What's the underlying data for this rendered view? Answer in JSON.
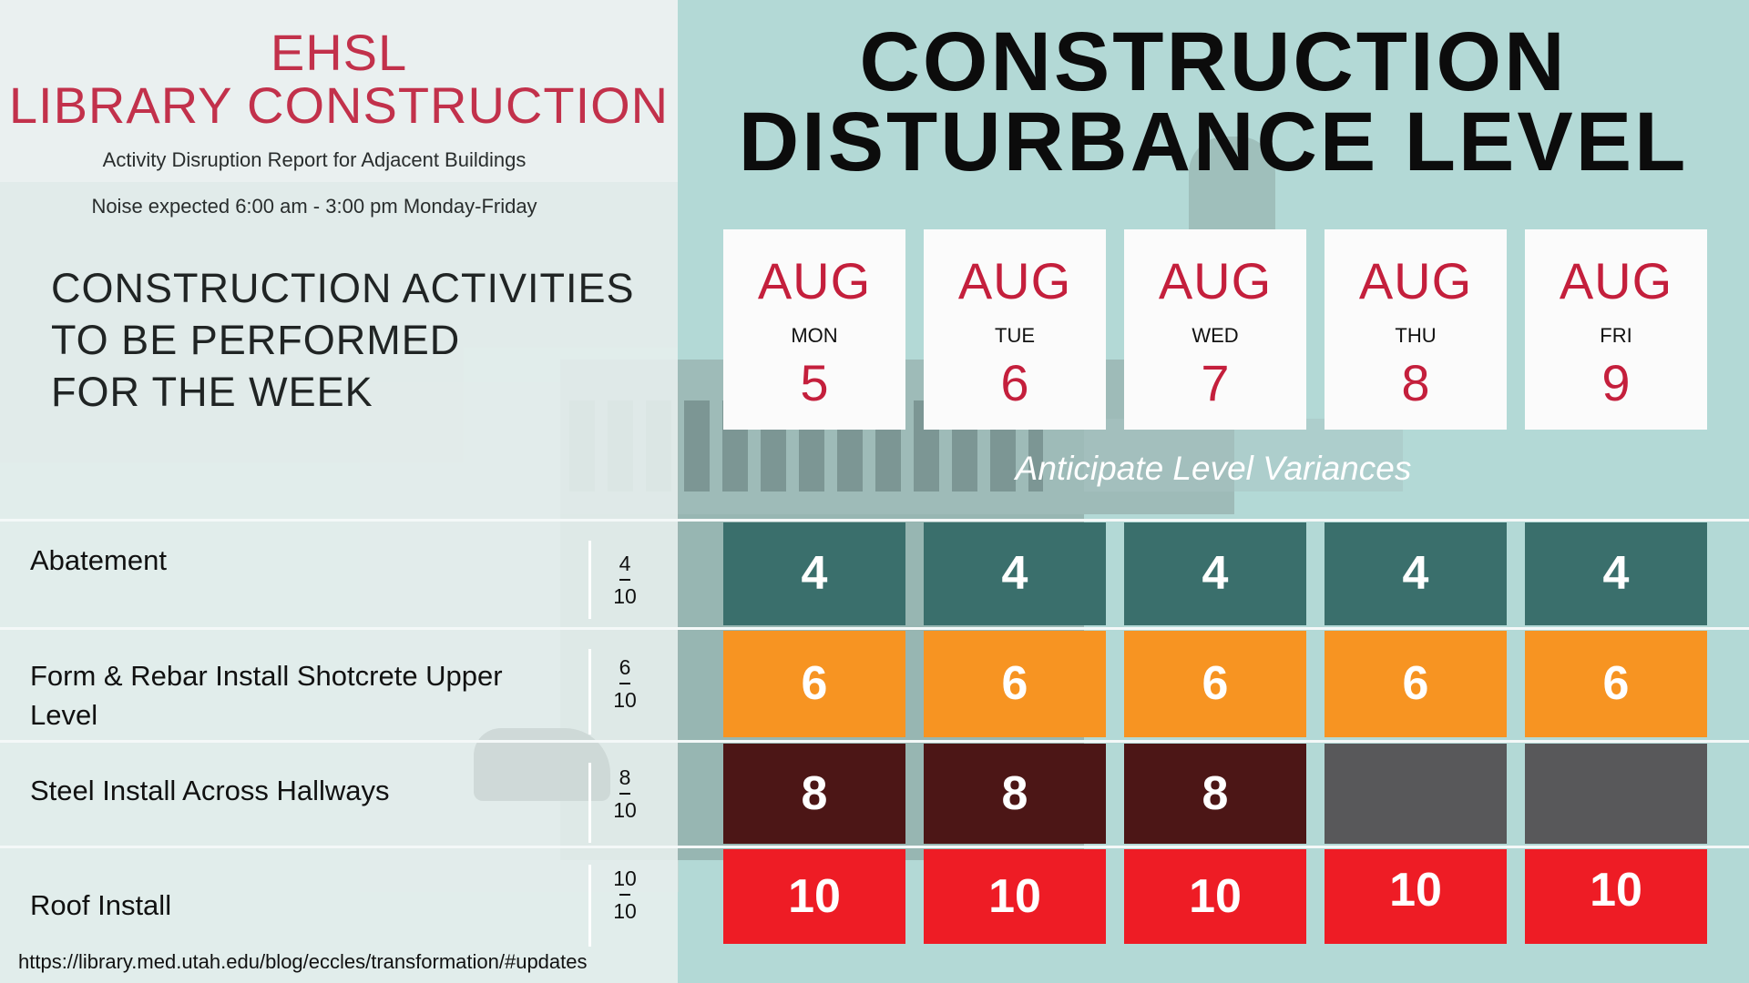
{
  "header": {
    "title_line1": "EHSL",
    "title_line2": "LIBRARY CONSTRUCTION",
    "subtitle": "Activity Disruption Report for Adjacent Buildings",
    "noise_note": "Noise expected 6:00 am - 3:00 pm Monday-Friday"
  },
  "activities_heading": [
    "CONSTRUCTION ACTIVITIES",
    "TO BE PERFORMED",
    "FOR THE WEEK"
  ],
  "main_title": [
    "CONSTRUCTION",
    "DISTURBANCE LEVEL"
  ],
  "variance_note": "Anticipate Level Variances",
  "days": [
    {
      "month": "AUG",
      "weekday": "MON",
      "day": "5"
    },
    {
      "month": "AUG",
      "weekday": "TUE",
      "day": "6"
    },
    {
      "month": "AUG",
      "weekday": "WED",
      "day": "7"
    },
    {
      "month": "AUG",
      "weekday": "THU",
      "day": "8"
    },
    {
      "month": "AUG",
      "weekday": "FRI",
      "day": "9"
    }
  ],
  "activities": [
    {
      "label": "Abatement",
      "level": "4",
      "max": "10",
      "values": [
        "4",
        "4",
        "4",
        "4",
        "4"
      ]
    },
    {
      "label": "Form & Rebar Install Shotcrete Upper Level",
      "level": "6",
      "max": "10",
      "values": [
        "6",
        "6",
        "6",
        "6",
        "6"
      ]
    },
    {
      "label": "Steel Install Across Hallways",
      "level": "8",
      "max": "10",
      "values": [
        "8",
        "8",
        "8",
        "",
        ""
      ]
    },
    {
      "label": "Roof Install",
      "level": "10",
      "max": "10",
      "values": [
        "10",
        "10",
        "10",
        "10",
        "10"
      ]
    }
  ],
  "colors": {
    "level_4": "#3a6f6c",
    "level_6": "#f79422",
    "level_8": "#4c1616",
    "level_10": "#ee1c25",
    "inactive": "#58585a",
    "accent_red": "#c41f3c"
  },
  "footer_url": "https://library.med.utah.edu/blog/eccles/transformation/#updates"
}
